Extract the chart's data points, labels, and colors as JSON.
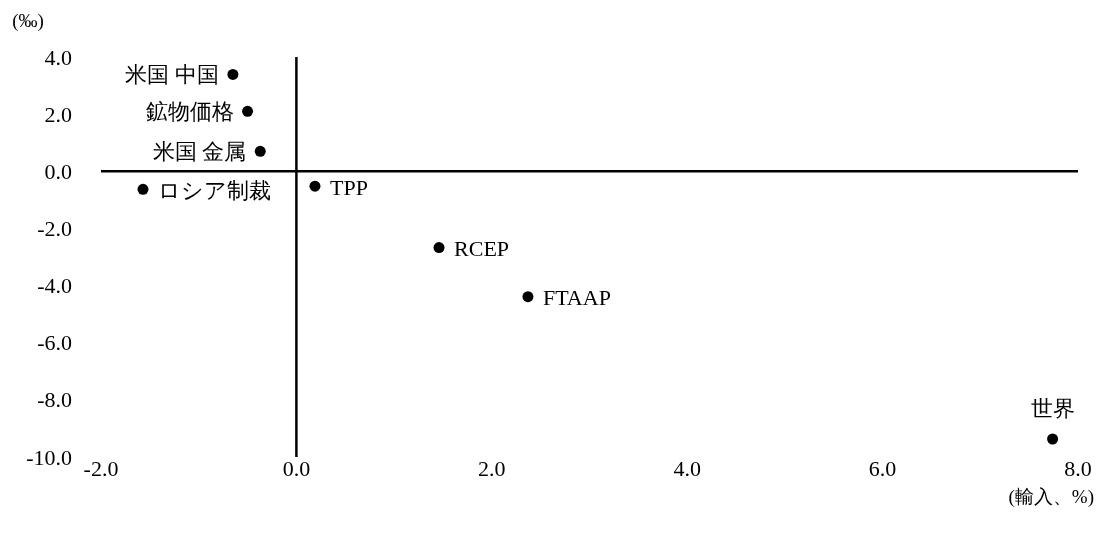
{
  "chart_data": {
    "type": "scatter",
    "ylabel": "(‰)",
    "xlabel": "(輸入、%)",
    "xlim": [
      -2,
      8
    ],
    "ylim": [
      -10,
      4
    ],
    "xticks": [
      {
        "value": -2,
        "label": "-2.0"
      },
      {
        "value": 0,
        "label": "0.0"
      },
      {
        "value": 2,
        "label": "2.0"
      },
      {
        "value": 4,
        "label": "4.0"
      },
      {
        "value": 6,
        "label": "6.0"
      },
      {
        "value": 8,
        "label": "8.0"
      }
    ],
    "yticks": [
      {
        "value": 4,
        "label": "4.0"
      },
      {
        "value": 2,
        "label": "2.0"
      },
      {
        "value": 0,
        "label": "0.0"
      },
      {
        "value": -2,
        "label": "-2.0"
      },
      {
        "value": -4,
        "label": "-4.0"
      },
      {
        "value": -6,
        "label": "-6.0"
      },
      {
        "value": -8,
        "label": "-8.0"
      },
      {
        "value": -10,
        "label": "-10.0"
      }
    ],
    "marker": "circle",
    "series": [
      {
        "color": "#000000",
        "x": [
          -0.65,
          -0.5,
          -0.37,
          -1.57,
          0.19,
          1.46,
          2.37,
          7.74
        ],
        "values": [
          3.39,
          2.1,
          0.7,
          -0.63,
          -0.52,
          -2.67,
          -4.39,
          -9.37
        ]
      }
    ],
    "annotations": [
      {
        "text": "米国 中国",
        "x": -0.65,
        "y": 3.39
      },
      {
        "text": "鉱物価格",
        "x": -0.5,
        "y": 2.1
      },
      {
        "text": "米国 金属",
        "x": -0.37,
        "y": 0.7
      },
      {
        "text": "ロシア制裁",
        "x": -1.57,
        "y": -0.63
      },
      {
        "text": "TPP",
        "x": 0.19,
        "y": -0.52
      },
      {
        "text": "RCEP",
        "x": 1.46,
        "y": -2.67
      },
      {
        "text": "FTAAP",
        "x": 2.37,
        "y": -4.39
      },
      {
        "text": "世界",
        "x": 7.74,
        "y": -9.37
      }
    ]
  }
}
